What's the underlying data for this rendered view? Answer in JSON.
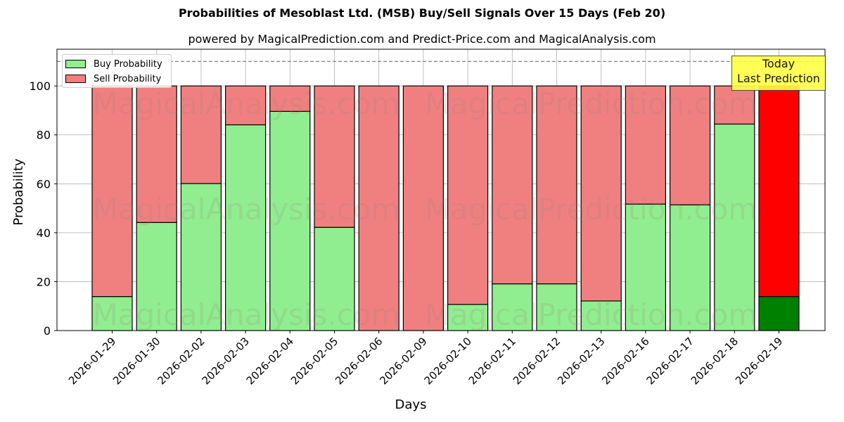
{
  "header": {
    "title": "Probabilities of Mesoblast Ltd. (MSB) Buy/Sell Signals Over 15 Days (Feb 20)",
    "subtitle": "powered by MagicalPrediction.com and Predict-Price.com and MagicalAnalysis.com"
  },
  "legend": {
    "buy_label": "Buy Probability",
    "sell_label": "Sell Probability"
  },
  "annotation": {
    "line1": "Today",
    "line2": "Last Prediction"
  },
  "watermarks": [
    "MagicalAnalysis.com",
    "MagicalPrediction.com"
  ],
  "colors": {
    "buy": "#90ee90",
    "sell": "#f08080",
    "today_buy": "#008000",
    "today_sell": "#ff0000",
    "annotation_bg": "#ffff44"
  },
  "chart_data": {
    "type": "bar",
    "stacked": true,
    "title": "Probabilities of Mesoblast Ltd. (MSB) Buy/Sell Signals Over 15 Days (Feb 20)",
    "subtitle": "powered by MagicalPrediction.com and Predict-Price.com and MagicalAnalysis.com",
    "xlabel": "Days",
    "ylabel": "Probability",
    "ylim": [
      0,
      115
    ],
    "yticks": [
      0,
      20,
      40,
      60,
      80,
      100
    ],
    "grid": true,
    "legend_position": "upper left",
    "reference_line": {
      "y": 110,
      "style": "dashed",
      "color": "#808080"
    },
    "categories": [
      "2026-01-29",
      "2026-01-30",
      "2026-02-02",
      "2026-02-03",
      "2026-02-04",
      "2026-02-05",
      "2026-02-06",
      "2026-02-09",
      "2026-02-10",
      "2026-02-11",
      "2026-02-12",
      "2026-02-13",
      "2026-02-16",
      "2026-02-17",
      "2026-02-18",
      "2026-02-19"
    ],
    "series": [
      {
        "name": "Buy Probability",
        "values": [
          13.9,
          44.2,
          60.1,
          84.1,
          89.6,
          42.2,
          0,
          0,
          10.7,
          19.1,
          19.1,
          12.1,
          51.7,
          51.4,
          84.4,
          13.9
        ]
      },
      {
        "name": "Sell Probability",
        "values": [
          86.1,
          55.8,
          39.9,
          15.9,
          10.4,
          57.8,
          100,
          100,
          89.3,
          80.9,
          80.9,
          87.9,
          48.3,
          48.6,
          15.6,
          86.1
        ]
      }
    ],
    "highlight_last": {
      "label": "Today\nLast Prediction",
      "buy_color": "#008000",
      "sell_color": "#ff0000"
    }
  }
}
